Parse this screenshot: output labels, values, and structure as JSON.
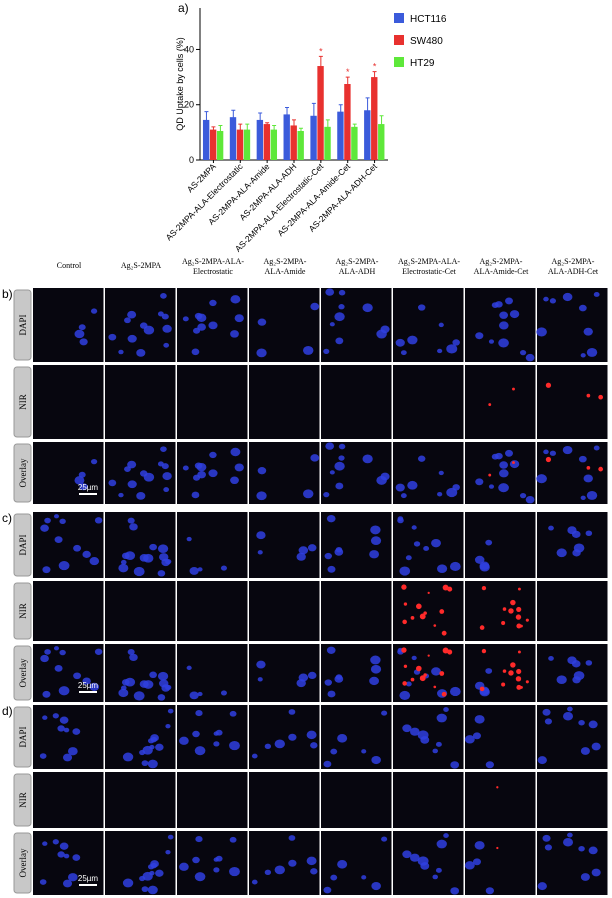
{
  "chart_data": {
    "type": "bar",
    "title": "a)",
    "y_label": "QD Uptake by cells (%)",
    "categories": [
      "AS-2MPA",
      "AS-2MPA-ALA-Electrostatic",
      "AS-2MPA-ALA-Amide",
      "AS-2MPA-ALA-ADH",
      "AS-2MPA-ALA-Electrostatic-Cet",
      "AS-2MPA-ALA-Amide-Cet",
      "AS-2MPA-ALA-ADH-Cet"
    ],
    "series": [
      {
        "name": "HCT116",
        "color": "#3b5bdb",
        "values": [
          14.5,
          15.5,
          14.5,
          16.5,
          16,
          17.5,
          18
        ],
        "errors": [
          3,
          2.5,
          2.5,
          2.5,
          4.5,
          2.5,
          4.5
        ]
      },
      {
        "name": "SW480",
        "color": "#e8312f",
        "values": [
          11,
          11,
          13,
          12.5,
          34,
          27.5,
          30
        ],
        "errors": [
          1,
          2,
          0.5,
          2,
          3.5,
          2.5,
          2
        ],
        "markers": [
          null,
          null,
          null,
          null,
          "*",
          "*",
          "*"
        ]
      },
      {
        "name": "HT29",
        "color": "#5ee83a",
        "values": [
          10.5,
          11,
          11,
          10.5,
          12,
          12,
          13
        ],
        "errors": [
          2,
          2,
          1.5,
          1,
          2.5,
          1,
          3
        ]
      }
    ],
    "ylim": [
      0,
      55
    ],
    "yticks": [
      0,
      20,
      40
    ],
    "legend": "right"
  },
  "panels": [
    {
      "label": "b)",
      "columns": [
        [
          "Control"
        ],
        [
          "Ag₂S-2MPA"
        ],
        [
          "Ag₂S-2MPA-ALA-",
          "Electrostatic"
        ],
        [
          "Ag₂S-2MPA-",
          "ALA-Amide"
        ],
        [
          "Ag₂S-2MPA-",
          "ALA-ADH"
        ],
        [
          "Ag₂S-2MPA-ALA-",
          "Electrostatic-Cet"
        ],
        [
          "Ag₂S-2MPA-",
          "ALA-Amide-Cet"
        ],
        [
          "Ag₂S-2MPA-",
          "ALA-ADH-Cet"
        ]
      ],
      "rows": [
        "DAPI",
        "NIR",
        "Overlay"
      ],
      "scale_bar": "25µm"
    },
    {
      "label": "c)",
      "rows": [
        "DAPI",
        "NIR",
        "Overlay"
      ],
      "scale_bar": "25µm"
    },
    {
      "label": "d)",
      "rows": [
        "DAPI",
        "NIR",
        "Overlay"
      ],
      "scale_bar": "25µm"
    }
  ]
}
